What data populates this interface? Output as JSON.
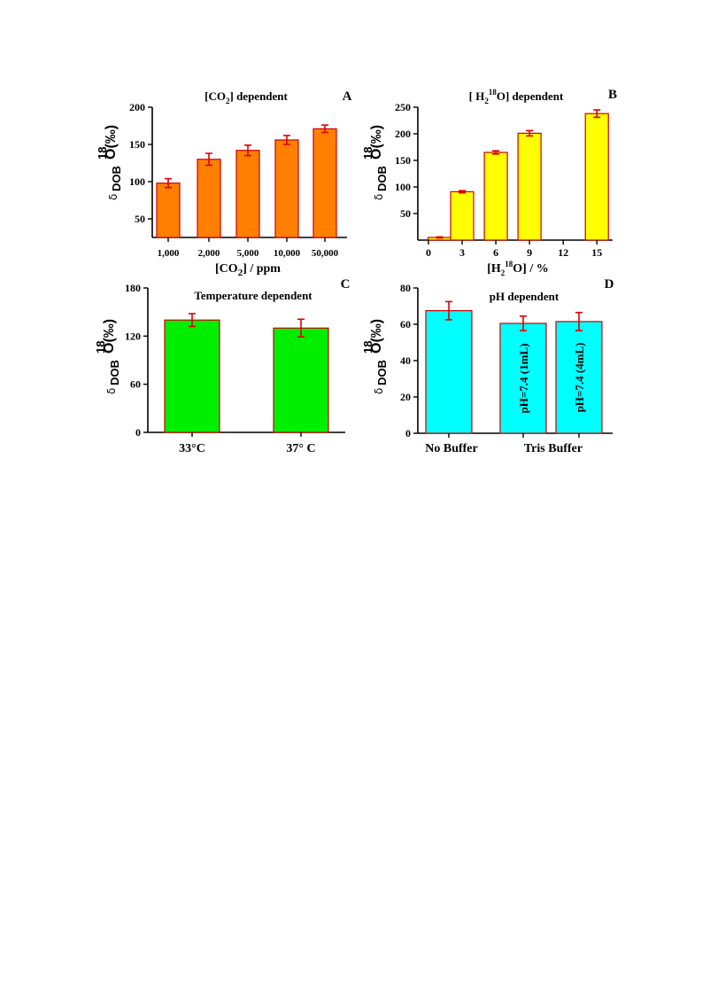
{
  "chart_data": [
    {
      "id": "A",
      "type": "bar",
      "panel_letter": "A",
      "title": "[CO2] dependent",
      "title_parts": [
        "[CO",
        "2",
        "] dependent"
      ],
      "xlabel": "[CO2] / ppm",
      "xlabel_parts": [
        "[CO",
        "2",
        "] / ppm"
      ],
      "ylabel": "δ18O DOB (‰)",
      "ylabel_parts": {
        "delta": "δ",
        "sub": "DOB",
        "sup": "18",
        "main": "O(‰)"
      },
      "categories": [
        "1,000",
        "2,000",
        "5,000",
        "10,000",
        "50,000"
      ],
      "values": [
        98,
        130,
        142,
        156,
        171
      ],
      "errors": [
        6,
        8,
        7,
        6,
        5
      ],
      "ylim": [
        25,
        200
      ],
      "yticks": [
        50,
        100,
        150,
        200
      ],
      "bar_color": "#ff8000",
      "edge_color": "#cc0000",
      "error_color": "#e00000"
    },
    {
      "id": "B",
      "type": "bar",
      "panel_letter": "B",
      "title": "[ H218O] dependent",
      "title_parts": [
        "[ H",
        "2",
        "18",
        "O] dependent"
      ],
      "xlabel": "[H218O] / %",
      "xlabel_parts": [
        "[H",
        "2",
        "18",
        "O] / %"
      ],
      "ylabel": "δ18O DOB (‰)",
      "ylabel_parts": {
        "delta": "δ",
        "sub": "DOB",
        "sup": "18",
        "main": "O(‰)"
      },
      "x": [
        1,
        3,
        6,
        9,
        15
      ],
      "values": [
        5,
        91,
        165,
        201,
        238
      ],
      "errors": [
        1,
        2,
        3,
        5,
        7
      ],
      "xlim": [
        0,
        16.4
      ],
      "xticks": [
        0,
        3,
        6,
        9,
        12,
        15
      ],
      "ylim": [
        0,
        250
      ],
      "yticks": [
        50,
        100,
        150,
        200,
        250
      ],
      "bar_color": "#ffff00",
      "edge_color": "#cc0000",
      "error_color": "#e00000"
    },
    {
      "id": "C",
      "type": "bar",
      "panel_letter": "C",
      "title": "Temperature dependent",
      "xlabel": "",
      "ylabel": "δ18O DOB (‰)",
      "ylabel_parts": {
        "delta": "δ",
        "sub": "DOB",
        "sup": "18",
        "main": "O(‰)"
      },
      "categories": [
        "33°C",
        "37° C"
      ],
      "values": [
        140,
        130
      ],
      "errors": [
        8,
        11
      ],
      "ylim": [
        0,
        180
      ],
      "yticks": [
        0,
        60,
        120,
        180
      ],
      "bar_color": "#00ee00",
      "edge_color": "#cc0000",
      "error_color": "#e00000"
    },
    {
      "id": "D",
      "type": "bar",
      "panel_letter": "D",
      "title": "pH dependent",
      "xlabel": "",
      "ylabel": "δ18O DOB (‰)",
      "ylabel_parts": {
        "delta": "δ",
        "sub": "DOB",
        "sup": "18",
        "main": "O(‰)"
      },
      "categories": [
        "No Buffer",
        "pH=7.4 (1mL)",
        "pH=7.4 (4mL)"
      ],
      "group_labels": [
        "No Buffer",
        "Tris Buffer"
      ],
      "values": [
        67.5,
        60.5,
        61.5
      ],
      "errors": [
        5,
        4,
        5
      ],
      "ylim": [
        0,
        80
      ],
      "yticks": [
        0,
        20,
        40,
        60,
        80
      ],
      "bar_color": "#00ffff",
      "edge_color": "#cc0000",
      "error_color": "#e00000"
    }
  ]
}
